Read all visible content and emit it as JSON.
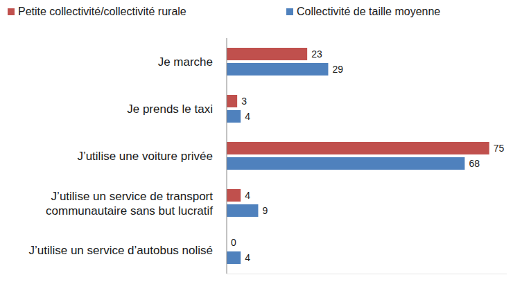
{
  "chart_data": {
    "type": "bar",
    "orientation": "horizontal",
    "categories": [
      "Je marche",
      "Je prends le taxi",
      "J’utilise une voiture privée",
      "J’utilise un service de transport\ncommunautaire sans but lucratif",
      "J’utilise un service d’autobus nolisé"
    ],
    "series": [
      {
        "name": "Petite collectivité/collectivité rurale",
        "color": "#c0504d",
        "values": [
          23,
          3,
          75,
          4,
          0
        ]
      },
      {
        "name": "Collectivité de taille moyenne",
        "color": "#4f81bd",
        "values": [
          29,
          4,
          68,
          9,
          4
        ]
      }
    ],
    "xlim": [
      0,
      80
    ],
    "grid": false,
    "legend": "top",
    "data_labels": true,
    "tick_labels": "y"
  }
}
